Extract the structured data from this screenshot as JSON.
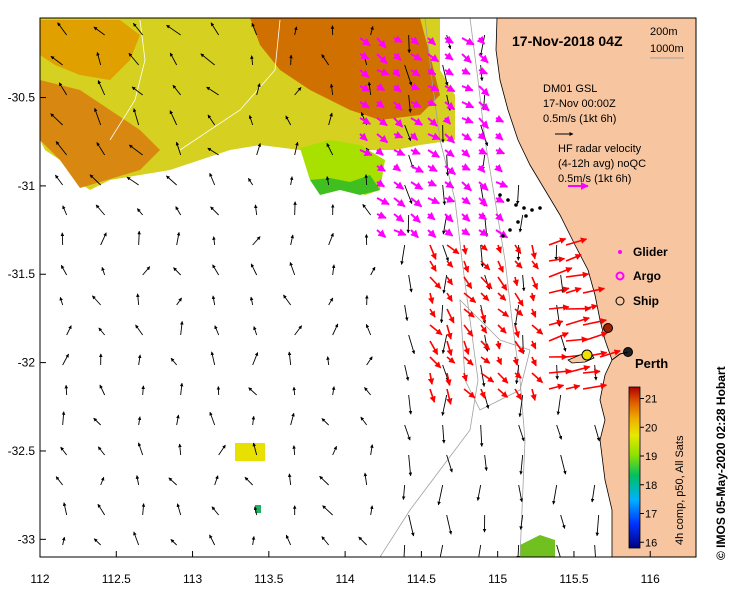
{
  "map": {
    "title": "17-Nov-2018 04Z",
    "credit": "© IMOS 05-May-2020 02:28 Hobart",
    "x_ticks": [
      "112",
      "112.5",
      "113",
      "113.5",
      "114",
      "114.5",
      "115",
      "115.5",
      "116"
    ],
    "y_ticks": [
      "-30.5",
      "-31",
      "-31.5",
      "-32",
      "-32.5",
      "-33"
    ],
    "lon_range": [
      112,
      116.3
    ],
    "lat_range": [
      -33.1,
      -30.05
    ],
    "land_color": "#f7c6a1",
    "ocean_color": "#ffffff",
    "isobath_legend": {
      "label_200": "200m",
      "label_1000": "1000m"
    },
    "dm01": {
      "line1": "DM01 GSL",
      "line2": "17-Nov 00:00Z",
      "line3": "0.5m/s (1kt 6h)",
      "arrow_color": "#000000"
    },
    "hf_radar": {
      "line1": "HF radar velocity",
      "line2": "(4-12h avg) noQC",
      "line3": "0.5m/s (1kt 6h)",
      "arrow_color": "#ff00ff",
      "red_color": "#ff0000"
    },
    "markers": {
      "glider": "Glider",
      "argo": "Argo",
      "ship": "Ship"
    },
    "city": "Perth",
    "colorbar": {
      "label": "4h comp, p50, All Sats",
      "ticks": [
        "16",
        "17",
        "18",
        "19",
        "20",
        "21"
      ],
      "min": 15.8,
      "max": 21.4
    }
  }
}
